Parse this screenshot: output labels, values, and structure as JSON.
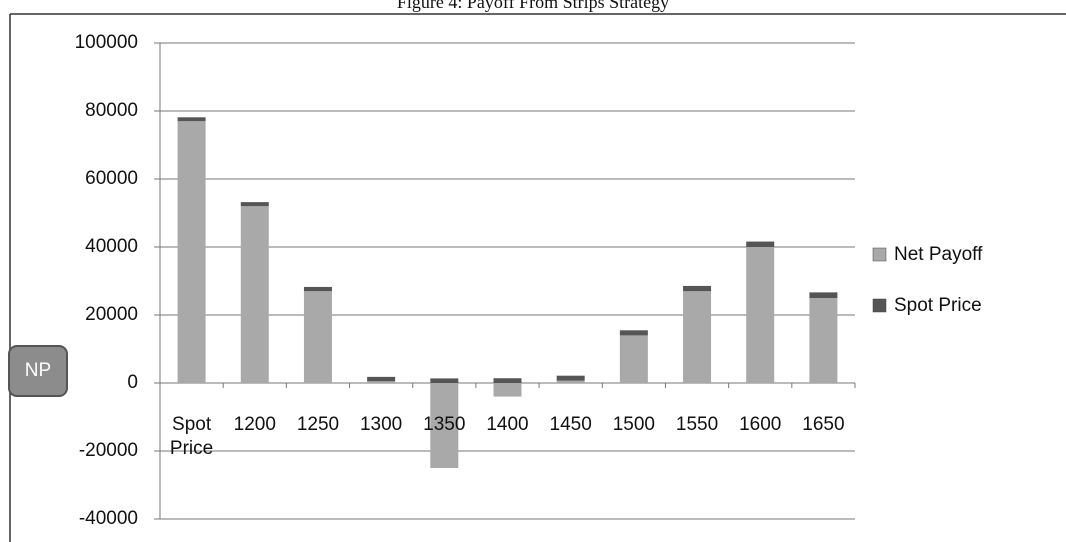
{
  "chart_data": {
    "type": "stacked_bar",
    "title": "Figure 4: Payoff From Strips Strategy",
    "annotation": "NP",
    "categories": [
      "Spot Price",
      "1200",
      "1250",
      "1300",
      "1350",
      "1400",
      "1450",
      "1500",
      "1550",
      "1600",
      "1650"
    ],
    "series": [
      {
        "name": "Net Payoff",
        "color": "#a9a9a9",
        "values": [
          77000,
          52000,
          27000,
          500,
          -25000,
          -4000,
          700,
          14000,
          27000,
          40000,
          25000
        ]
      },
      {
        "name": "Spot Price",
        "color": "#555555",
        "values": [
          1150,
          1200,
          1250,
          1300,
          1350,
          1400,
          1450,
          1500,
          1550,
          1600,
          1650
        ]
      }
    ],
    "ylim": [
      -40000,
      100000
    ],
    "yticks": [
      -40000,
      -20000,
      0,
      20000,
      40000,
      60000,
      80000,
      100000
    ],
    "grid": true,
    "legend": "right"
  }
}
